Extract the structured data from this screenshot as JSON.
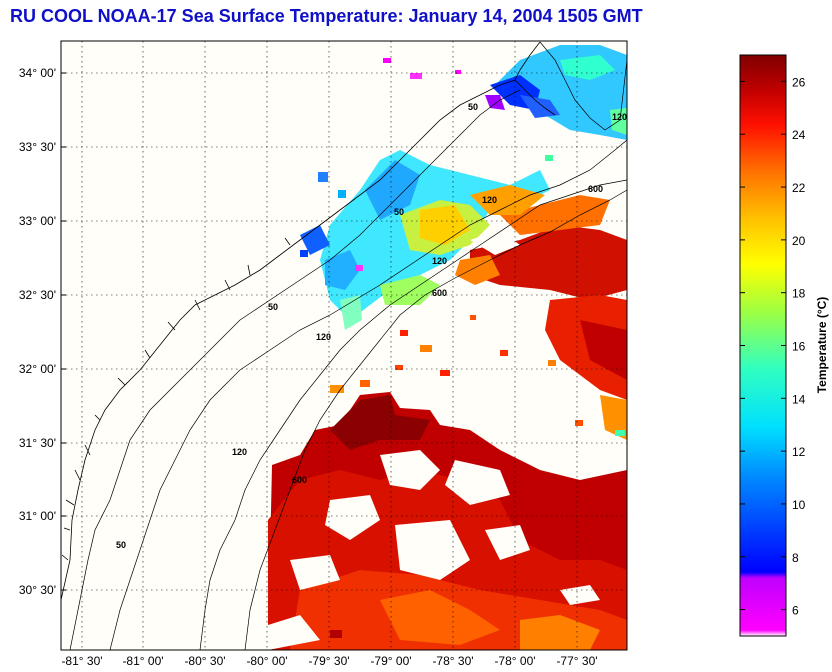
{
  "title": "RU COOL  NOAA-17  Sea Surface Temperature:  January 14, 2004 1505 GMT",
  "map": {
    "lon_range": [
      "-81.75",
      "-77.0"
    ],
    "lat_range": [
      "30.25",
      "34.25"
    ],
    "lat_ticks": [
      "34° 00'",
      "33° 30'",
      "33° 00'",
      "32° 30'",
      "32° 00'",
      "31° 30'",
      "31° 00'",
      "30° 30'"
    ],
    "lon_ticks": [
      "-81° 30'",
      "-81° 00'",
      "-80° 30'",
      "-80° 00'",
      "-79° 30'",
      "-79° 00'",
      "-78° 30'",
      "-78° 00'",
      "-77° 30'"
    ],
    "grid": "dotted",
    "contour_labels": [
      "50",
      "50",
      "50",
      "50",
      "120",
      "120",
      "120",
      "120",
      "120",
      "600",
      "600",
      "600"
    ]
  },
  "colorbar": {
    "label": "Temperature (°C)",
    "min": 5,
    "max": 27,
    "ticks": [
      "26",
      "24",
      "22",
      "20",
      "18",
      "16",
      "14",
      "12",
      "10",
      "8",
      "6"
    ]
  }
}
